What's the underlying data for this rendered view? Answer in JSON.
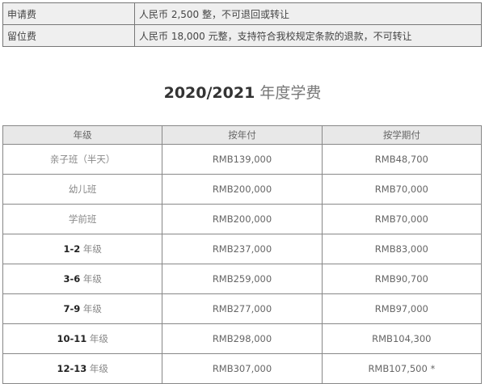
{
  "fees": [
    {
      "label": "申请费",
      "value": "人民币 2,500 整，不可退回或转让"
    },
    {
      "label": "留位费",
      "value": "人民币 18,000 元整，支持符合我校规定条款的退款，不可转让"
    }
  ],
  "title": {
    "year": "2020/2021",
    "text": "年度学费"
  },
  "tuition": {
    "headers": [
      "年级",
      "按年付",
      "按学期付"
    ],
    "rows": [
      {
        "grade_num": "",
        "grade": "亲子班（半天）",
        "annual": "RMB139,000",
        "term": "RMB48,700"
      },
      {
        "grade_num": "",
        "grade": "幼儿班",
        "annual": "RMB200,000",
        "term": "RMB70,000"
      },
      {
        "grade_num": "",
        "grade": "学前班",
        "annual": "RMB200,000",
        "term": "RMB70,000"
      },
      {
        "grade_num": "1-2",
        "grade": "年级",
        "annual": "RMB237,000",
        "term": "RMB83,000"
      },
      {
        "grade_num": "3-6",
        "grade": "年级",
        "annual": "RMB259,000",
        "term": "RMB90,700"
      },
      {
        "grade_num": "7-9",
        "grade": "年级",
        "annual": "RMB277,000",
        "term": "RMB97,000"
      },
      {
        "grade_num": "10-11",
        "grade": "年级",
        "annual": "RMB298,000",
        "term": "RMB104,300"
      },
      {
        "grade_num": "12-13",
        "grade": "年级",
        "annual": "RMB307,000",
        "term": "RMB107,500 *"
      }
    ]
  }
}
